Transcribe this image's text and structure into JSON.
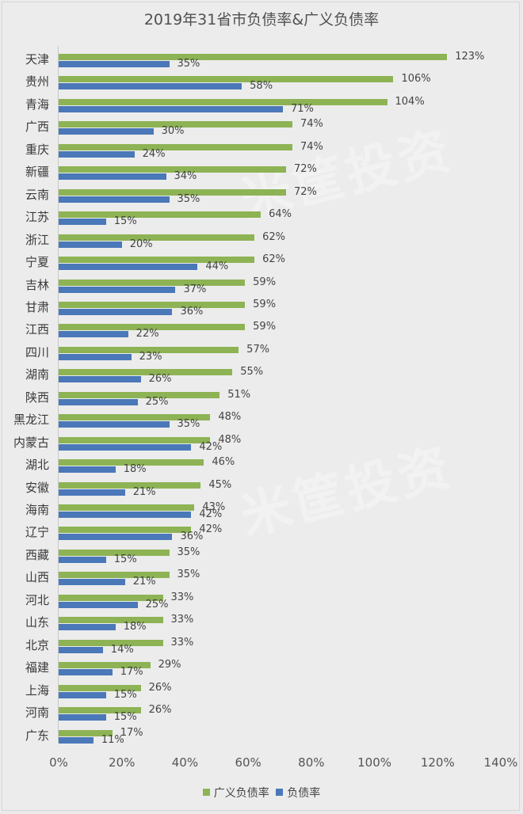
{
  "title": "2019年31省市负债率&广义负债率",
  "colors": {
    "broad": "#8db354",
    "debt": "#4a78b8",
    "background": "#ebebeb"
  },
  "legend": [
    {
      "name": "广义负债率",
      "color": "#8db354"
    },
    {
      "name": "负债率",
      "color": "#4a78b8"
    }
  ],
  "x_ticks": [
    "0%",
    "20%",
    "40%",
    "60%",
    "80%",
    "100%",
    "120%",
    "140%"
  ],
  "watermark": "米筐投资",
  "chart_data": {
    "type": "bar",
    "orientation": "horizontal",
    "title": "2019年31省市负债率&广义负债率",
    "xlabel": "",
    "ylabel": "",
    "xlim": [
      0,
      140
    ],
    "x_tick_labels": [
      "0%",
      "20%",
      "40%",
      "60%",
      "80%",
      "100%",
      "120%",
      "140%"
    ],
    "legend_position": "bottom",
    "grid": false,
    "unit": "%",
    "categories": [
      "天津",
      "贵州",
      "青海",
      "广西",
      "重庆",
      "新疆",
      "云南",
      "江苏",
      "浙江",
      "宁夏",
      "吉林",
      "甘肃",
      "江西",
      "四川",
      "湖南",
      "陕西",
      "黑龙江",
      "内蒙古",
      "湖北",
      "安徽",
      "海南",
      "辽宁",
      "西藏",
      "山西",
      "河北",
      "山东",
      "北京",
      "福建",
      "上海",
      "河南",
      "广东"
    ],
    "series": [
      {
        "name": "广义负债率",
        "values": [
          123,
          106,
          104,
          74,
          74,
          72,
          72,
          64,
          62,
          62,
          59,
          59,
          59,
          57,
          55,
          51,
          48,
          48,
          46,
          45,
          43,
          42,
          35,
          35,
          33,
          33,
          33,
          29,
          26,
          26,
          17
        ]
      },
      {
        "name": "负债率",
        "values": [
          35,
          58,
          71,
          30,
          24,
          34,
          35,
          15,
          20,
          44,
          37,
          36,
          22,
          23,
          26,
          25,
          35,
          42,
          18,
          21,
          42,
          36,
          15,
          21,
          25,
          18,
          14,
          17,
          15,
          15,
          11
        ]
      }
    ]
  }
}
